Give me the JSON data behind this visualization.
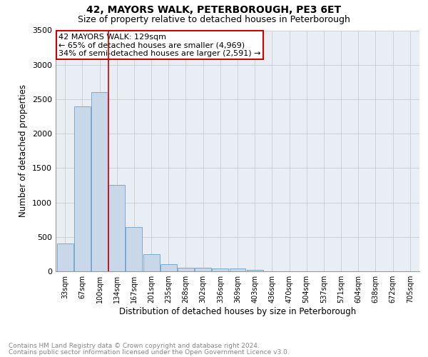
{
  "title": "42, MAYORS WALK, PETERBOROUGH, PE3 6ET",
  "subtitle": "Size of property relative to detached houses in Peterborough",
  "xlabel": "Distribution of detached houses by size in Peterborough",
  "ylabel": "Number of detached properties",
  "footnote1": "Contains HM Land Registry data © Crown copyright and database right 2024.",
  "footnote2": "Contains public sector information licensed under the Open Government Licence v3.0.",
  "annotation_line1": "42 MAYORS WALK: 129sqm",
  "annotation_line2": "← 65% of detached houses are smaller (4,969)",
  "annotation_line3": "34% of semi-detached houses are larger (2,591) →",
  "bar_categories": [
    "33sqm",
    "67sqm",
    "100sqm",
    "134sqm",
    "167sqm",
    "201sqm",
    "235sqm",
    "268sqm",
    "302sqm",
    "336sqm",
    "369sqm",
    "403sqm",
    "436sqm",
    "470sqm",
    "504sqm",
    "537sqm",
    "571sqm",
    "604sqm",
    "638sqm",
    "672sqm",
    "705sqm"
  ],
  "bar_values": [
    400,
    2400,
    2600,
    1250,
    640,
    250,
    100,
    55,
    55,
    40,
    40,
    25,
    0,
    0,
    0,
    0,
    0,
    0,
    0,
    0,
    0
  ],
  "bar_color": "#c8d8e8",
  "bar_edge_color": "#7aaacc",
  "vline_x": 2.5,
  "vline_color": "#cc0000",
  "ylim": [
    0,
    3500
  ],
  "yticks": [
    0,
    500,
    1000,
    1500,
    2000,
    2500,
    3000,
    3500
  ],
  "grid_color": "#cccccc",
  "bg_color": "#e8eef4",
  "annotation_box_color": "#ffffff",
  "annotation_box_edge": "#cc0000",
  "title_fontsize": 10,
  "subtitle_fontsize": 9,
  "label_fontsize": 8.5,
  "tick_fontsize": 8,
  "xtick_fontsize": 7,
  "footnote_fontsize": 6.5,
  "annotation_fontsize": 8
}
